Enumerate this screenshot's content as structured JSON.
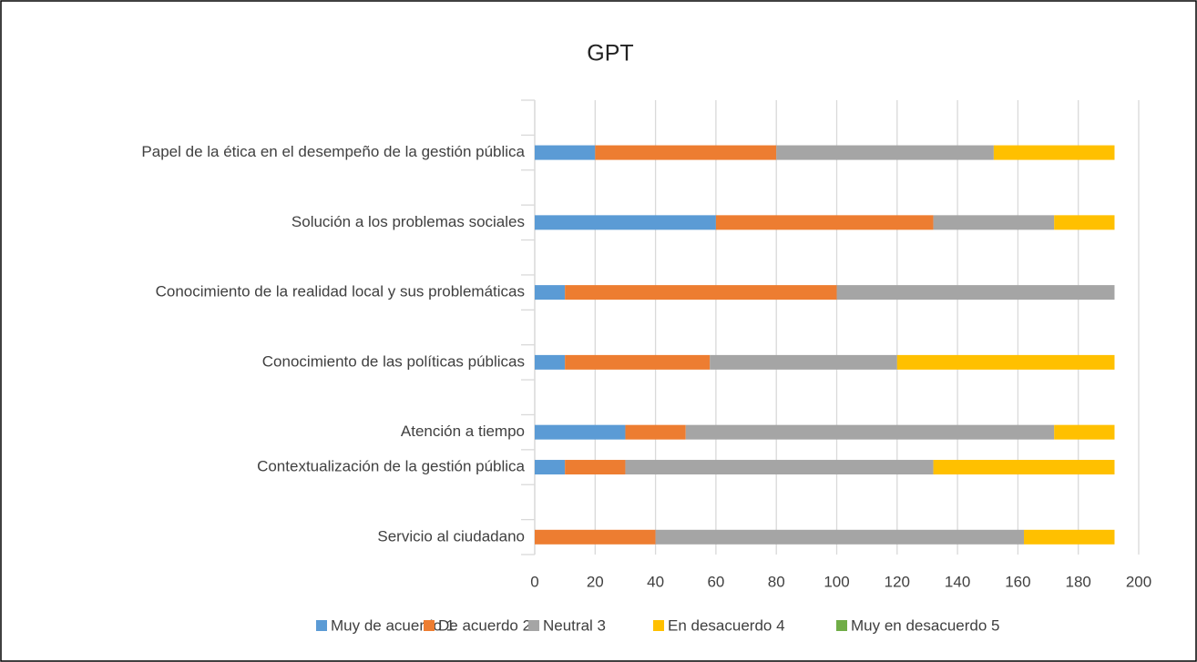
{
  "chart_data": {
    "type": "stacked_barh",
    "title": "GPT",
    "categories": [
      "Servicio al ciudadano",
      null,
      "Contextualización de la gestión pública",
      "Atención a tiempo",
      null,
      "Conocimiento de las políticas públicas",
      null,
      "Conocimiento de la realidad local y sus problemáticas",
      null,
      "Solución a los problemas sociales",
      null,
      "Papel de la ética en el desempeño de la gestión pública",
      null
    ],
    "series": [
      {
        "name": "Muy de acuerdo 1",
        "color": "#5b9bd5",
        "values": [
          0,
          null,
          10,
          30,
          null,
          10,
          null,
          10,
          null,
          60,
          null,
          20,
          null
        ]
      },
      {
        "name": "De acuerdo 2",
        "color": "#ed7d31",
        "values": [
          40,
          null,
          20,
          20,
          null,
          48,
          null,
          90,
          null,
          72,
          null,
          60,
          null
        ]
      },
      {
        "name": "Neutral 3",
        "color": "#a5a5a5",
        "values": [
          122,
          null,
          102,
          122,
          null,
          62,
          null,
          92,
          null,
          40,
          null,
          72,
          null
        ]
      },
      {
        "name": "En desacuerdo 4",
        "color": "#ffc000",
        "values": [
          30,
          null,
          60,
          20,
          null,
          72,
          null,
          0,
          null,
          20,
          null,
          40,
          null
        ]
      },
      {
        "name": "Muy en desacuerdo 5",
        "color": "#70ad47",
        "values": [
          0,
          null,
          0,
          0,
          null,
          0,
          null,
          0,
          null,
          0,
          null,
          0,
          null
        ]
      }
    ],
    "xlim": [
      0,
      200
    ],
    "xticks": [
      0,
      20,
      40,
      60,
      80,
      100,
      120,
      140,
      160,
      180,
      200
    ],
    "grid": true,
    "legend": "bottom"
  }
}
